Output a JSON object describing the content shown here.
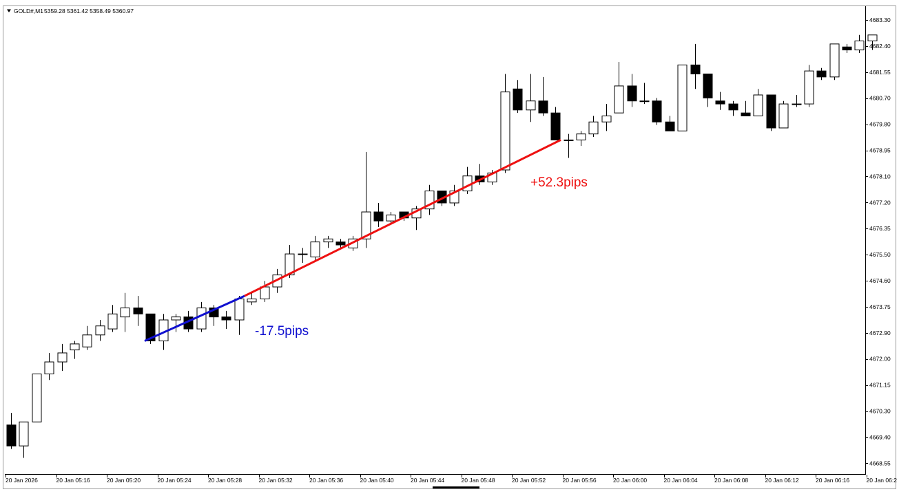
{
  "header": {
    "menu_icon": "triangle-down-icon",
    "symbol": "GOLD#,M1",
    "ohlc": "5359.28 5361.42 5358.49 5360.97"
  },
  "price_axis": {
    "labels": [
      "4683.30",
      "4682.40",
      "4681.55",
      "4680.70",
      "4679.80",
      "4678.95",
      "4678.10",
      "4677.20",
      "4676.35",
      "4675.50",
      "4674.60",
      "4673.75",
      "4672.90",
      "4672.00",
      "4671.15",
      "4670.30",
      "4669.40",
      "4668.55"
    ]
  },
  "time_axis": {
    "labels": [
      "20 Jan 2026",
      "20 Jan 05:16",
      "20 Jan 05:20",
      "20 Jan 05:24",
      "20 Jan 05:28",
      "20 Jan 05:32",
      "20 Jan 05:36",
      "20 Jan 05:40",
      "20 Jan 05:44",
      "20 Jan 05:48",
      "20 Jan 05:52",
      "20 Jan 05:56",
      "20 Jan 06:00",
      "20 Jan 06:04",
      "20 Jan 06:08",
      "20 Jan 06:12",
      "20 Jan 06:16",
      "20 Jan 06:2"
    ]
  },
  "annotations": [
    {
      "text": "-17.5pips",
      "color": "#1010d0",
      "start_price": 4672.6,
      "end_price": 4674.1
    },
    {
      "text": "+52.3pips",
      "color": "#ee1111",
      "start_price": 4674.1,
      "end_price": 4679.3
    }
  ],
  "chart_data": {
    "type": "candlestick",
    "symbol": "GOLD#",
    "timeframe": "M1",
    "x_start": "20 Jan 05:12",
    "interval_minutes": 1,
    "ylim": [
      4668.3,
      4683.6
    ],
    "up_color": "#ffffff",
    "down_color": "#000000",
    "candles": [
      {
        "o": 4669.8,
        "h": 4670.2,
        "l": 4669.0,
        "c": 4669.1
      },
      {
        "o": 4669.1,
        "h": 4669.9,
        "l": 4668.7,
        "c": 4669.9
      },
      {
        "o": 4669.9,
        "h": 4671.5,
        "l": 4669.9,
        "c": 4671.5
      },
      {
        "o": 4671.5,
        "h": 4672.2,
        "l": 4671.3,
        "c": 4671.9
      },
      {
        "o": 4671.9,
        "h": 4672.5,
        "l": 4671.6,
        "c": 4672.2
      },
      {
        "o": 4672.3,
        "h": 4672.6,
        "l": 4672.0,
        "c": 4672.5
      },
      {
        "o": 4672.4,
        "h": 4673.1,
        "l": 4672.3,
        "c": 4672.8
      },
      {
        "o": 4672.8,
        "h": 4673.3,
        "l": 4672.6,
        "c": 4673.1
      },
      {
        "o": 4673.0,
        "h": 4673.8,
        "l": 4672.9,
        "c": 4673.5
      },
      {
        "o": 4673.4,
        "h": 4674.2,
        "l": 4672.9,
        "c": 4673.7
      },
      {
        "o": 4673.7,
        "h": 4674.1,
        "l": 4673.1,
        "c": 4673.5
      },
      {
        "o": 4673.5,
        "h": 4673.5,
        "l": 4672.5,
        "c": 4672.6
      },
      {
        "o": 4672.6,
        "h": 4673.5,
        "l": 4672.3,
        "c": 4673.3
      },
      {
        "o": 4673.3,
        "h": 4673.5,
        "l": 4672.9,
        "c": 4673.4
      },
      {
        "o": 4673.4,
        "h": 4673.6,
        "l": 4672.9,
        "c": 4673.0
      },
      {
        "o": 4673.0,
        "h": 4673.9,
        "l": 4672.9,
        "c": 4673.7
      },
      {
        "o": 4673.7,
        "h": 4673.8,
        "l": 4673.1,
        "c": 4673.4
      },
      {
        "o": 4673.4,
        "h": 4673.6,
        "l": 4673.0,
        "c": 4673.3
      },
      {
        "o": 4673.3,
        "h": 4674.1,
        "l": 4672.8,
        "c": 4674.0
      },
      {
        "o": 4673.9,
        "h": 4674.2,
        "l": 4673.8,
        "c": 4674.0
      },
      {
        "o": 4674.0,
        "h": 4674.6,
        "l": 4673.9,
        "c": 4674.4
      },
      {
        "o": 4674.4,
        "h": 4675.0,
        "l": 4674.2,
        "c": 4674.8
      },
      {
        "o": 4674.8,
        "h": 4675.8,
        "l": 4674.7,
        "c": 4675.5
      },
      {
        "o": 4675.5,
        "h": 4675.7,
        "l": 4675.2,
        "c": 4675.5
      },
      {
        "o": 4675.4,
        "h": 4676.1,
        "l": 4675.3,
        "c": 4675.9
      },
      {
        "o": 4675.9,
        "h": 4676.1,
        "l": 4675.7,
        "c": 4676.0
      },
      {
        "o": 4675.9,
        "h": 4676.0,
        "l": 4675.7,
        "c": 4675.8
      },
      {
        "o": 4675.7,
        "h": 4676.1,
        "l": 4675.6,
        "c": 4676.0
      },
      {
        "o": 4676.0,
        "h": 4678.9,
        "l": 4675.7,
        "c": 4676.9
      },
      {
        "o": 4676.9,
        "h": 4677.2,
        "l": 4676.4,
        "c": 4676.6
      },
      {
        "o": 4676.6,
        "h": 4676.9,
        "l": 4676.5,
        "c": 4676.8
      },
      {
        "o": 4676.9,
        "h": 4676.9,
        "l": 4676.6,
        "c": 4676.7
      },
      {
        "o": 4676.7,
        "h": 4677.1,
        "l": 4676.3,
        "c": 4677.0
      },
      {
        "o": 4677.0,
        "h": 4677.8,
        "l": 4676.8,
        "c": 4677.6
      },
      {
        "o": 4677.6,
        "h": 4677.6,
        "l": 4677.1,
        "c": 4677.2
      },
      {
        "o": 4677.2,
        "h": 4677.8,
        "l": 4677.1,
        "c": 4677.6
      },
      {
        "o": 4677.6,
        "h": 4678.4,
        "l": 4677.5,
        "c": 4678.1
      },
      {
        "o": 4678.1,
        "h": 4678.5,
        "l": 4677.8,
        "c": 4677.9
      },
      {
        "o": 4677.9,
        "h": 4678.3,
        "l": 4677.8,
        "c": 4678.2
      },
      {
        "o": 4678.3,
        "h": 4681.5,
        "l": 4678.2,
        "c": 4680.9
      },
      {
        "o": 4681.0,
        "h": 4681.3,
        "l": 4680.2,
        "c": 4680.3
      },
      {
        "o": 4680.3,
        "h": 4681.5,
        "l": 4679.9,
        "c": 4680.6
      },
      {
        "o": 4680.6,
        "h": 4681.4,
        "l": 4680.1,
        "c": 4680.2
      },
      {
        "o": 4680.2,
        "h": 4680.4,
        "l": 4679.3,
        "c": 4679.3
      },
      {
        "o": 4679.3,
        "h": 4679.5,
        "l": 4678.7,
        "c": 4679.3
      },
      {
        "o": 4679.3,
        "h": 4679.6,
        "l": 4679.1,
        "c": 4679.5
      },
      {
        "o": 4679.5,
        "h": 4680.1,
        "l": 4679.4,
        "c": 4679.9
      },
      {
        "o": 4679.9,
        "h": 4680.5,
        "l": 4679.6,
        "c": 4680.1
      },
      {
        "o": 4680.2,
        "h": 4681.9,
        "l": 4680.2,
        "c": 4681.1
      },
      {
        "o": 4681.1,
        "h": 4681.5,
        "l": 4680.4,
        "c": 4680.6
      },
      {
        "o": 4680.6,
        "h": 4681.2,
        "l": 4680.5,
        "c": 4680.6
      },
      {
        "o": 4680.6,
        "h": 4680.7,
        "l": 4679.8,
        "c": 4679.9
      },
      {
        "o": 4679.9,
        "h": 4680.1,
        "l": 4679.6,
        "c": 4679.6
      },
      {
        "o": 4679.6,
        "h": 4681.8,
        "l": 4679.6,
        "c": 4681.8
      },
      {
        "o": 4681.8,
        "h": 4682.5,
        "l": 4681.0,
        "c": 4681.5
      },
      {
        "o": 4681.5,
        "h": 4681.5,
        "l": 4680.4,
        "c": 4680.7
      },
      {
        "o": 4680.6,
        "h": 4680.9,
        "l": 4680.3,
        "c": 4680.5
      },
      {
        "o": 4680.5,
        "h": 4680.6,
        "l": 4680.1,
        "c": 4680.3
      },
      {
        "o": 4680.2,
        "h": 4680.6,
        "l": 4680.1,
        "c": 4680.1
      },
      {
        "o": 4680.1,
        "h": 4681.0,
        "l": 4680.1,
        "c": 4680.8
      },
      {
        "o": 4680.8,
        "h": 4680.8,
        "l": 4679.6,
        "c": 4679.7
      },
      {
        "o": 4679.7,
        "h": 4680.6,
        "l": 4679.7,
        "c": 4680.5
      },
      {
        "o": 4680.5,
        "h": 4680.8,
        "l": 4680.4,
        "c": 4680.5
      },
      {
        "o": 4680.5,
        "h": 4681.8,
        "l": 4680.4,
        "c": 4681.6
      },
      {
        "o": 4681.6,
        "h": 4681.7,
        "l": 4681.3,
        "c": 4681.4
      },
      {
        "o": 4681.4,
        "h": 4682.5,
        "l": 4681.3,
        "c": 4682.5
      },
      {
        "o": 4682.4,
        "h": 4682.5,
        "l": 4682.2,
        "c": 4682.3
      },
      {
        "o": 4682.3,
        "h": 4682.8,
        "l": 4682.2,
        "c": 4682.6
      },
      {
        "o": 4682.6,
        "h": 4682.8,
        "l": 4682.3,
        "c": 4682.8
      }
    ]
  }
}
